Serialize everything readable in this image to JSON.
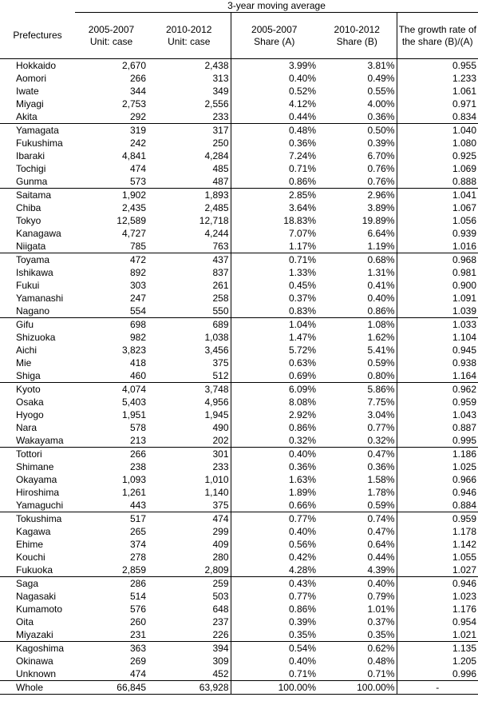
{
  "header": {
    "group_label": "3-year moving average",
    "col_prefectures": "Prefectures",
    "col_cases_0507_line1": "2005-2007",
    "col_cases_0507_line2": "Unit: case",
    "col_cases_1012_line1": "2010-2012",
    "col_cases_1012_line2": "Unit: case",
    "col_share_a_line1": "2005-2007",
    "col_share_a_line2": "Share (A)",
    "col_share_b_line1": "2010-2012",
    "col_share_b_line2": "Share (B)",
    "col_growth": "The growth rate of the share (B)/(A)"
  },
  "rows": [
    [
      "Hokkaido",
      "2,670",
      "2,438",
      "3.99%",
      "3.81%",
      "0.955"
    ],
    [
      "Aomori",
      "266",
      "313",
      "0.40%",
      "0.49%",
      "1.233"
    ],
    [
      "Iwate",
      "344",
      "349",
      "0.52%",
      "0.55%",
      "1.061"
    ],
    [
      "Miyagi",
      "2,753",
      "2,556",
      "4.12%",
      "4.00%",
      "0.971"
    ],
    [
      "Akita",
      "292",
      "233",
      "0.44%",
      "0.36%",
      "0.834"
    ],
    [
      "Yamagata",
      "319",
      "317",
      "0.48%",
      "0.50%",
      "1.040"
    ],
    [
      "Fukushima",
      "242",
      "250",
      "0.36%",
      "0.39%",
      "1.080"
    ],
    [
      "Ibaraki",
      "4,841",
      "4,284",
      "7.24%",
      "6.70%",
      "0.925"
    ],
    [
      "Tochigi",
      "474",
      "485",
      "0.71%",
      "0.76%",
      "1.069"
    ],
    [
      "Gunma",
      "573",
      "487",
      "0.86%",
      "0.76%",
      "0.888"
    ],
    [
      "Saitama",
      "1,902",
      "1,893",
      "2.85%",
      "2.96%",
      "1.041"
    ],
    [
      "Chiba",
      "2,435",
      "2,485",
      "3.64%",
      "3.89%",
      "1.067"
    ],
    [
      "Tokyo",
      "12,589",
      "12,718",
      "18.83%",
      "19.89%",
      "1.056"
    ],
    [
      "Kanagawa",
      "4,727",
      "4,244",
      "7.07%",
      "6.64%",
      "0.939"
    ],
    [
      "Niigata",
      "785",
      "763",
      "1.17%",
      "1.19%",
      "1.016"
    ],
    [
      "Toyama",
      "472",
      "437",
      "0.71%",
      "0.68%",
      "0.968"
    ],
    [
      "Ishikawa",
      "892",
      "837",
      "1.33%",
      "1.31%",
      "0.981"
    ],
    [
      "Fukui",
      "303",
      "261",
      "0.45%",
      "0.41%",
      "0.900"
    ],
    [
      "Yamanashi",
      "247",
      "258",
      "0.37%",
      "0.40%",
      "1.091"
    ],
    [
      "Nagano",
      "554",
      "550",
      "0.83%",
      "0.86%",
      "1.039"
    ],
    [
      "Gifu",
      "698",
      "689",
      "1.04%",
      "1.08%",
      "1.033"
    ],
    [
      "Shizuoka",
      "982",
      "1,038",
      "1.47%",
      "1.62%",
      "1.104"
    ],
    [
      "Aichi",
      "3,823",
      "3,456",
      "5.72%",
      "5.41%",
      "0.945"
    ],
    [
      "Mie",
      "418",
      "375",
      "0.63%",
      "0.59%",
      "0.938"
    ],
    [
      "Shiga",
      "460",
      "512",
      "0.69%",
      "0.80%",
      "1.164"
    ],
    [
      "Kyoto",
      "4,074",
      "3,748",
      "6.09%",
      "5.86%",
      "0.962"
    ],
    [
      "Osaka",
      "5,403",
      "4,956",
      "8.08%",
      "7.75%",
      "0.959"
    ],
    [
      "Hyogo",
      "1,951",
      "1,945",
      "2.92%",
      "3.04%",
      "1.043"
    ],
    [
      "Nara",
      "578",
      "490",
      "0.86%",
      "0.77%",
      "0.887"
    ],
    [
      "Wakayama",
      "213",
      "202",
      "0.32%",
      "0.32%",
      "0.995"
    ],
    [
      "Tottori",
      "266",
      "301",
      "0.40%",
      "0.47%",
      "1.186"
    ],
    [
      "Shimane",
      "238",
      "233",
      "0.36%",
      "0.36%",
      "1.025"
    ],
    [
      "Okayama",
      "1,093",
      "1,010",
      "1.63%",
      "1.58%",
      "0.966"
    ],
    [
      "Hiroshima",
      "1,261",
      "1,140",
      "1.89%",
      "1.78%",
      "0.946"
    ],
    [
      "Yamaguchi",
      "443",
      "375",
      "0.66%",
      "0.59%",
      "0.884"
    ],
    [
      "Tokushima",
      "517",
      "474",
      "0.77%",
      "0.74%",
      "0.959"
    ],
    [
      "Kagawa",
      "265",
      "299",
      "0.40%",
      "0.47%",
      "1.178"
    ],
    [
      "Ehime",
      "374",
      "409",
      "0.56%",
      "0.64%",
      "1.142"
    ],
    [
      "Kouchi",
      "278",
      "280",
      "0.42%",
      "0.44%",
      "1.055"
    ],
    [
      "Fukuoka",
      "2,859",
      "2,809",
      "4.28%",
      "4.39%",
      "1.027"
    ],
    [
      "Saga",
      "286",
      "259",
      "0.43%",
      "0.40%",
      "0.946"
    ],
    [
      "Nagasaki",
      "514",
      "503",
      "0.77%",
      "0.79%",
      "1.023"
    ],
    [
      "Kumamoto",
      "576",
      "648",
      "0.86%",
      "1.01%",
      "1.176"
    ],
    [
      "Oita",
      "260",
      "237",
      "0.39%",
      "0.37%",
      "0.954"
    ],
    [
      "Miyazaki",
      "231",
      "226",
      "0.35%",
      "0.35%",
      "1.021"
    ],
    [
      "Kagoshima",
      "363",
      "394",
      "0.54%",
      "0.62%",
      "1.135"
    ],
    [
      "Okinawa",
      "269",
      "309",
      "0.40%",
      "0.48%",
      "1.205"
    ],
    [
      "Unknown",
      "474",
      "452",
      "0.71%",
      "0.71%",
      "0.996"
    ]
  ],
  "whole": [
    "Whole",
    "66,845",
    "63,928",
    "100.00%",
    "100.00%",
    "-"
  ]
}
